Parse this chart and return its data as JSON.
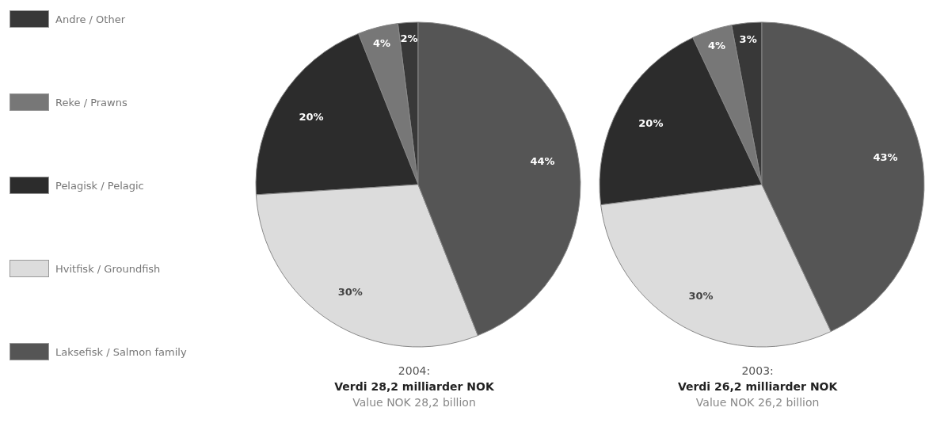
{
  "chart_data": [
    {
      "type": "pie",
      "title": "2004:",
      "subtitle": "Verdi 28,2 milliarder NOK",
      "annotations": [
        "Value NOK 28,2 billion"
      ],
      "categories": [
        "Andre / Other",
        "Reke / Prawns",
        "Pelagisk / Pelagic",
        "Hvitfisk / Groundfish",
        "Laksefisk / Salmon family"
      ],
      "values": [
        2,
        4,
        20,
        30,
        44
      ],
      "value_labels": [
        "2%",
        "4%",
        "20%",
        "30%",
        "44%"
      ],
      "colors": [
        "#383838",
        "#777777",
        "#2c2c2c",
        "#dcdcdc",
        "#555555"
      ],
      "legend": "left"
    },
    {
      "type": "pie",
      "title": "2003:",
      "subtitle": "Verdi 26,2 milliarder NOK",
      "annotations": [
        "Value NOK 26,2 billion"
      ],
      "categories": [
        null,
        null,
        null,
        null,
        null
      ],
      "values": [
        3,
        4,
        20,
        30,
        43
      ],
      "value_labels": [
        "3%",
        "4%",
        "20%",
        "30%",
        "43%"
      ],
      "colors": [
        "#383838",
        "#777777",
        "#2c2c2c",
        "#dcdcdc",
        "#555555"
      ]
    }
  ]
}
